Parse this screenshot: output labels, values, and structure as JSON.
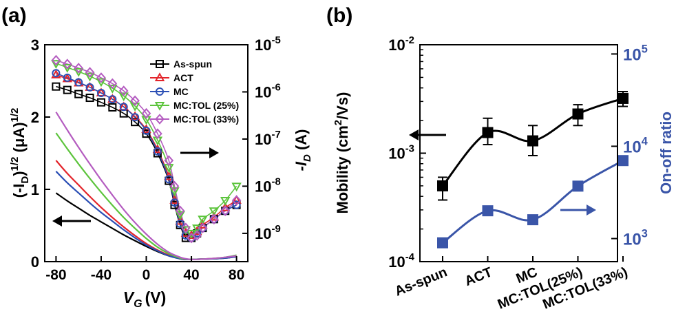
{
  "chart_data": [
    {
      "panel_label": "(a)",
      "type": "line",
      "xlabel_main": "V",
      "xlabel_sub": "G",
      "xlabel_unit": "(V)",
      "ylabel_left": "(-I_D)^1/2 (μA)^1/2",
      "ylabel_left_parts": {
        "open": "(-I",
        "sub": "D",
        "mid": ")",
        "sup1": "1/2",
        "unit": " (μA)",
        "sup2": "1/2"
      },
      "ylabel_right_parts": {
        "main": "-I",
        "sub": "D",
        "unit": " (A)"
      },
      "xlim": [
        -90,
        90
      ],
      "ylim_left": [
        0,
        3
      ],
      "ylim_right_log": [
        -9.6,
        -5
      ],
      "x_ticks": [
        -80,
        -40,
        0,
        40,
        80
      ],
      "y_ticks_left": [
        0,
        1,
        2,
        3
      ],
      "y_ticks_right": [
        {
          "exp": -9,
          "base": "10",
          "sup": "-9"
        },
        {
          "exp": -8,
          "base": "10",
          "sup": "-8"
        },
        {
          "exp": -7,
          "base": "10",
          "sup": "-7"
        },
        {
          "exp": -6,
          "base": "10",
          "sup": "-6"
        },
        {
          "exp": -5,
          "base": "10",
          "sup": "-5"
        }
      ],
      "legend": [
        "As-spun",
        "ACT",
        "MC",
        "MC:TOL (25%)",
        "MC:TOL (33%)"
      ],
      "series": [
        {
          "name": "As-spun",
          "color": "#000000",
          "marker": "square",
          "sqrt_x": [
            -80,
            -70,
            -60,
            -50,
            -40,
            -30,
            -20,
            -10,
            0,
            10,
            20,
            30,
            35,
            40,
            50,
            60,
            70,
            80
          ],
          "sqrt_y": [
            0.95,
            0.84,
            0.74,
            0.64,
            0.55,
            0.46,
            0.37,
            0.29,
            0.21,
            0.14,
            0.08,
            0.04,
            0.03,
            0.03,
            0.035,
            0.04,
            0.05,
            0.07
          ],
          "log_x": [
            -80,
            -70,
            -60,
            -50,
            -40,
            -30,
            -20,
            -10,
            0,
            10,
            20,
            25,
            30,
            35,
            40,
            45,
            50,
            60,
            70,
            80
          ],
          "log_y": [
            1.3e-06,
            1.1e-06,
            9e-07,
            7.5e-07,
            6e-07,
            4.7e-07,
            3.5e-07,
            2.3e-07,
            1.3e-07,
            5e-08,
            1.3e-08,
            4e-09,
            1.5e-09,
            8e-10,
            8e-10,
            1e-09,
            1.3e-09,
            2e-09,
            3e-09,
            4e-09
          ]
        },
        {
          "name": "ACT",
          "color": "#e3242b",
          "marker": "triangle-up",
          "sqrt_x": [
            -80,
            -70,
            -60,
            -50,
            -40,
            -30,
            -20,
            -10,
            0,
            10,
            20,
            30,
            35,
            40,
            50,
            60,
            70,
            80
          ],
          "sqrt_y": [
            1.4,
            1.22,
            1.06,
            0.9,
            0.75,
            0.61,
            0.48,
            0.36,
            0.25,
            0.16,
            0.09,
            0.04,
            0.03,
            0.03,
            0.035,
            0.045,
            0.055,
            0.08
          ],
          "log_x": [
            -80,
            -70,
            -60,
            -50,
            -40,
            -30,
            -20,
            -10,
            0,
            10,
            20,
            25,
            30,
            35,
            40,
            45,
            50,
            60,
            70,
            80
          ],
          "log_y": [
            2.3e-06,
            1.9e-06,
            1.55e-06,
            1.25e-06,
            9.5e-07,
            7e-07,
            4.8e-07,
            3e-07,
            1.6e-07,
            6e-08,
            1.6e-08,
            5e-09,
            1.8e-09,
            1e-09,
            9e-10,
            1.1e-09,
            1.5e-09,
            2.2e-09,
            3.5e-09,
            5e-09
          ]
        },
        {
          "name": "MC",
          "color": "#2b4fb5",
          "marker": "circle",
          "sqrt_x": [
            -80,
            -70,
            -60,
            -50,
            -40,
            -30,
            -20,
            -10,
            0,
            10,
            20,
            30,
            35,
            40,
            50,
            60,
            70,
            80
          ],
          "sqrt_y": [
            1.25,
            1.09,
            0.95,
            0.81,
            0.68,
            0.56,
            0.44,
            0.33,
            0.23,
            0.15,
            0.08,
            0.04,
            0.03,
            0.03,
            0.035,
            0.04,
            0.05,
            0.07
          ],
          "log_x": [
            -80,
            -70,
            -60,
            -50,
            -40,
            -30,
            -20,
            -10,
            0,
            10,
            20,
            25,
            30,
            35,
            40,
            45,
            50,
            60,
            70,
            80
          ],
          "log_y": [
            2.5e-06,
            2e-06,
            1.6e-06,
            1.25e-06,
            9.5e-07,
            7e-07,
            4.8e-07,
            2.9e-07,
            1.5e-07,
            5.5e-08,
            1.4e-08,
            4.5e-09,
            1.6e-09,
            9e-10,
            8e-10,
            1e-09,
            1.3e-09,
            2e-09,
            3e-09,
            4e-09
          ]
        },
        {
          "name": "MC:TOL (25%)",
          "color": "#5cc43c",
          "marker": "triangle-down",
          "sqrt_x": [
            -80,
            -70,
            -60,
            -50,
            -40,
            -30,
            -20,
            -10,
            0,
            10,
            20,
            30,
            35,
            40,
            50,
            60,
            70,
            80
          ],
          "sqrt_y": [
            1.78,
            1.56,
            1.35,
            1.15,
            0.96,
            0.78,
            0.61,
            0.46,
            0.32,
            0.2,
            0.11,
            0.05,
            0.035,
            0.03,
            0.035,
            0.045,
            0.06,
            0.09
          ],
          "log_x": [
            -80,
            -70,
            -60,
            -50,
            -40,
            -30,
            -20,
            -10,
            0,
            10,
            20,
            25,
            30,
            35,
            40,
            45,
            50,
            60,
            70,
            80
          ],
          "log_y": [
            4e-06,
            3.3e-06,
            2.7e-06,
            2.15e-06,
            1.65e-06,
            1.2e-06,
            8.2e-07,
            5e-07,
            2.6e-07,
            9.5e-08,
            2.5e-08,
            8e-09,
            2.5e-09,
            1.2e-09,
            1e-09,
            1.3e-09,
            2e-09,
            3e-09,
            5e-09,
            1e-08
          ]
        },
        {
          "name": "MC:TOL (33%)",
          "color": "#b45cc0",
          "marker": "diamond",
          "sqrt_x": [
            -80,
            -70,
            -60,
            -50,
            -40,
            -30,
            -20,
            -10,
            0,
            10,
            20,
            30,
            35,
            40,
            50,
            60,
            70,
            80
          ],
          "sqrt_y": [
            2.07,
            1.82,
            1.58,
            1.35,
            1.13,
            0.92,
            0.72,
            0.54,
            0.38,
            0.24,
            0.13,
            0.06,
            0.04,
            0.03,
            0.035,
            0.045,
            0.06,
            0.08
          ],
          "log_x": [
            -80,
            -70,
            -60,
            -50,
            -40,
            -30,
            -20,
            -10,
            0,
            10,
            20,
            25,
            30,
            35,
            40,
            45,
            50,
            60,
            70,
            80
          ],
          "log_y": [
            4.7e-06,
            3.9e-06,
            3.2e-06,
            2.6e-06,
            2e-06,
            1.5e-06,
            1.05e-06,
            6.5e-07,
            3.5e-07,
            1.3e-07,
            3.5e-08,
            1e-08,
            3e-09,
            1.3e-09,
            8e-10,
            9e-10,
            1.3e-09,
            2e-09,
            3e-09,
            5e-09
          ]
        }
      ]
    },
    {
      "panel_label": "(b)",
      "type": "scatter",
      "categories": [
        "As-spun",
        "ACT",
        "MC",
        "MC:TOL(25%)",
        "MC:TOL(33%)"
      ],
      "ylabel_left_parts": {
        "main": "Mobility (cm",
        "sup": "2",
        "unit": "/Vs)"
      },
      "ylabel_right": "On-off ratio",
      "ylim_left_log": [
        -4,
        -2
      ],
      "ylim_right_log": [
        2.75,
        5.1
      ],
      "y_ticks_left": [
        {
          "exp": -4,
          "base": "10",
          "sup": "-4"
        },
        {
          "exp": -3,
          "base": "10",
          "sup": "-3"
        },
        {
          "exp": -2,
          "base": "10",
          "sup": "-2"
        }
      ],
      "y_ticks_right": [
        {
          "exp": 3,
          "base": "10",
          "sup": "3"
        },
        {
          "exp": 4,
          "base": "10",
          "sup": "4"
        },
        {
          "exp": 5,
          "base": "10",
          "sup": "5"
        }
      ],
      "series": [
        {
          "name": "Mobility",
          "color": "#000000",
          "axis": "left",
          "marker": "square",
          "values": [
            0.0005,
            0.00155,
            0.0013,
            0.0023,
            0.0032
          ],
          "err_low": [
            0.00037,
            0.0012,
            0.00095,
            0.0018,
            0.0027
          ],
          "err_high": [
            0.0006,
            0.0021,
            0.0018,
            0.0028,
            0.0037
          ]
        },
        {
          "name": "On-off ratio",
          "color": "#3a55a8",
          "axis": "right",
          "marker": "square",
          "values": [
            900,
            2000,
            1600,
            3700,
            7000
          ]
        }
      ]
    }
  ]
}
